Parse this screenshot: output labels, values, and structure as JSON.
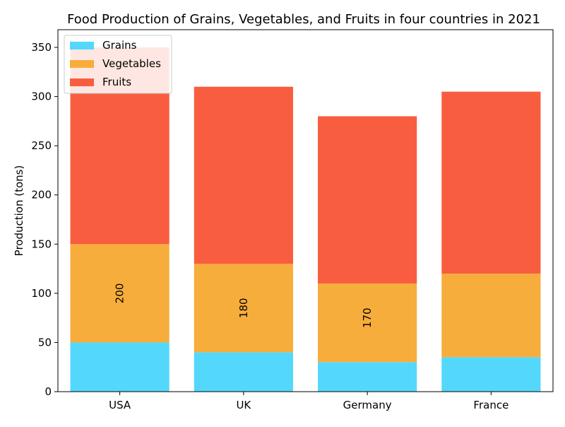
{
  "chart_data": {
    "type": "bar",
    "stacked": true,
    "title": "Food Production of Grains, Vegetables, and Fruits in four countries in 2021",
    "xlabel": "",
    "ylabel": "Production (tons)",
    "categories": [
      "USA",
      "UK",
      "Germany",
      "France"
    ],
    "ylim": [
      0,
      368
    ],
    "yticks": [
      0,
      50,
      100,
      150,
      200,
      250,
      300,
      350
    ],
    "grid": false,
    "legend_position": "top-left",
    "series": [
      {
        "name": "Grains",
        "values": [
          50,
          40,
          30,
          35
        ],
        "color": "#53d8fb"
      },
      {
        "name": "Vegetables",
        "values": [
          100,
          90,
          80,
          85
        ],
        "color": "#f7ad3b"
      },
      {
        "name": "Fruits",
        "values": [
          200,
          180,
          170,
          185
        ],
        "color": "#f95d40"
      }
    ],
    "annotations": [
      {
        "category": "USA",
        "text": "200",
        "y": 100,
        "rotation": 90
      },
      {
        "category": "UK",
        "text": "180",
        "y": 85,
        "rotation": 90
      },
      {
        "category": "Germany",
        "text": "170",
        "y": 75,
        "rotation": 90
      }
    ]
  }
}
